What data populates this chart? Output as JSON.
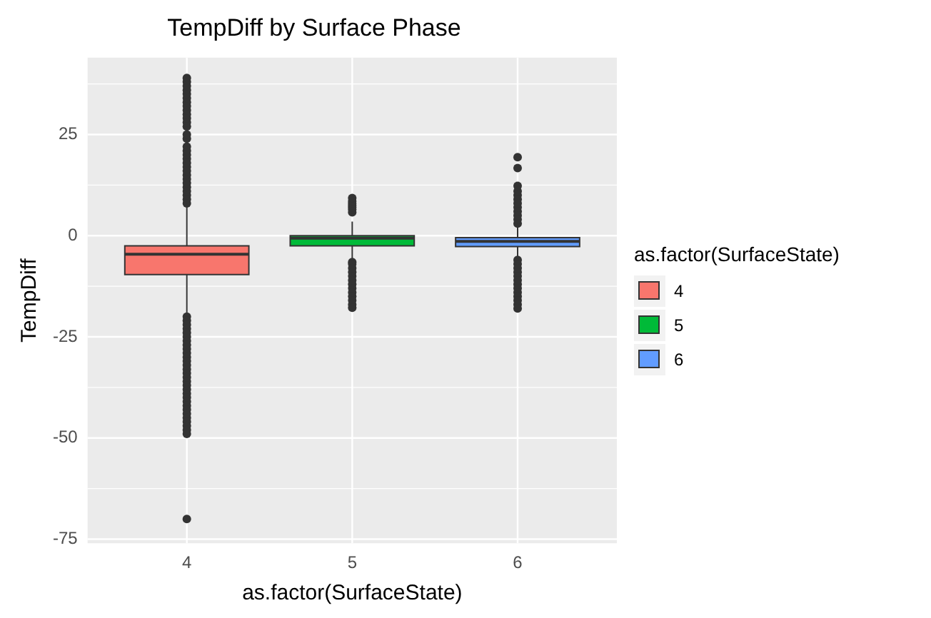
{
  "chart_data": {
    "type": "box",
    "title": "TempDiff by Surface Phase",
    "xlabel": "as.factor(SurfaceState)",
    "ylabel": "TempDiff",
    "legend_title": "as.factor(SurfaceState)",
    "legend": "right",
    "grid": true,
    "categories": [
      "4",
      "5",
      "6"
    ],
    "series": [
      {
        "name": "4",
        "color": "#f8766d",
        "boxes": [
          {
            "low": -19.3,
            "q1": -9.6,
            "median": -4.6,
            "q3": -2.5,
            "high": 7.1,
            "outliers": [
              8,
              9,
              10,
              11,
              12,
              13,
              14,
              15,
              16,
              17,
              18,
              19,
              20,
              21,
              22,
              24,
              25,
              27,
              28,
              29,
              30,
              31,
              32,
              33,
              34,
              35,
              36,
              37,
              38,
              39,
              -20,
              -21,
              -22,
              -23,
              -24,
              -25,
              -26,
              -27,
              -28,
              -29,
              -30,
              -31,
              -32,
              -33,
              -34,
              -35,
              -36,
              -37,
              -38,
              -39,
              -40,
              -41,
              -42,
              -43,
              -44,
              -45,
              -46,
              -47,
              -48,
              -49,
              -70
            ]
          },
          null,
          null
        ]
      },
      {
        "name": "5",
        "color": "#00ba38",
        "boxes": [
          null,
          {
            "low": -6,
            "q1": -2.5,
            "median": -0.6,
            "q3": 0,
            "high": 3.5,
            "outliers": [
              5.8,
              6.5,
              7,
              7.5,
              8,
              8.5,
              9.3,
              -6.5,
              -7,
              -8,
              -9,
              -10,
              -11,
              -12,
              -13,
              -14,
              -15,
              -16,
              -17,
              -17.8
            ]
          },
          null
        ]
      },
      {
        "name": "6",
        "color": "#619cff",
        "boxes": [
          null,
          null,
          {
            "low": -5.4,
            "q1": -2.7,
            "median": -1.4,
            "q3": -0.5,
            "high": 2.4,
            "outliers": [
              3,
              4,
              5,
              6,
              7,
              8,
              9,
              10,
              11,
              12.3,
              16.7,
              19.4,
              -6,
              -7,
              -8,
              -9,
              -10,
              -11,
              -12,
              -13,
              -14,
              -15,
              -16,
              -17,
              -18
            ]
          }
        ]
      }
    ],
    "ylim": [
      -76,
      44
    ],
    "yticks": [
      -75,
      -50,
      -25,
      0,
      25
    ]
  }
}
